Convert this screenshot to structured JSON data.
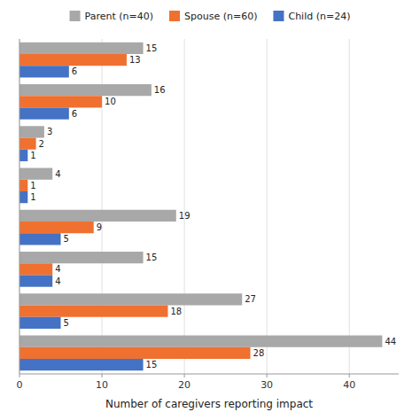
{
  "chart_data": {
    "type": "bar",
    "orientation": "horizontal",
    "categories": [
      null,
      null,
      null,
      null,
      null,
      null,
      null,
      null
    ],
    "series": [
      {
        "name": "Parent (n=40)",
        "color": "#a8a8a8",
        "values": [
          15,
          16,
          3,
          4,
          19,
          15,
          27,
          44
        ]
      },
      {
        "name": "Spouse (n=60)",
        "color": "#f07030",
        "values": [
          13,
          10,
          2,
          1,
          9,
          4,
          18,
          28
        ]
      },
      {
        "name": "Child (n=24)",
        "color": "#4472c4",
        "values": [
          6,
          6,
          1,
          1,
          5,
          4,
          5,
          15
        ]
      }
    ],
    "xlabel": "Number of caregivers reporting impact",
    "xlim": [
      0,
      46
    ],
    "xticks": [
      0,
      10,
      20,
      30,
      40
    ],
    "grid": true,
    "legend": "top",
    "data_labels": true
  }
}
